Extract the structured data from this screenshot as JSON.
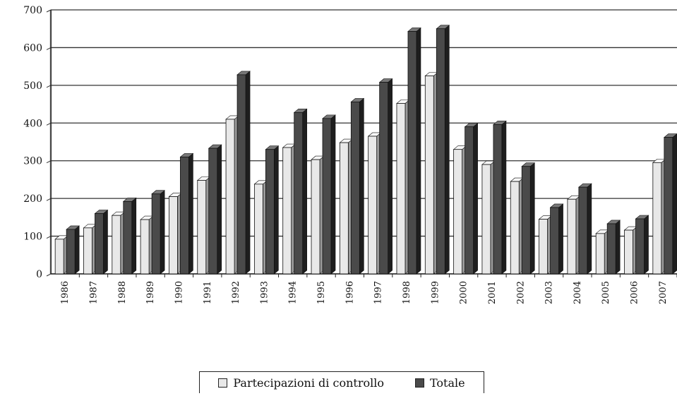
{
  "chart_data": {
    "type": "bar",
    "title": "",
    "xlabel": "",
    "ylabel": "",
    "categories": [
      "1986",
      "1987",
      "1988",
      "1989",
      "1990",
      "1991",
      "1992",
      "1993",
      "1994",
      "1995",
      "1996",
      "1997",
      "1998",
      "1999",
      "2000",
      "2001",
      "2002",
      "2003",
      "2004",
      "2005",
      "2006",
      "2007"
    ],
    "ylim": [
      0,
      700
    ],
    "yticks": [
      "0",
      "100",
      "200",
      "300",
      "400",
      "500",
      "600",
      "700"
    ],
    "grid": true,
    "legend_position": "bottom",
    "series": [
      {
        "name": "Partecipazioni di controllo",
        "color": "#e8e8e8",
        "values": [
          92,
          122,
          155,
          144,
          205,
          248,
          410,
          238,
          335,
          303,
          348,
          365,
          452,
          525,
          330,
          290,
          245,
          145,
          198,
          107,
          116,
          295
        ]
      },
      {
        "name": "Totale",
        "color": "#4a4a4a",
        "values": [
          118,
          160,
          192,
          212,
          310,
          333,
          528,
          330,
          428,
          412,
          456,
          508,
          643,
          650,
          390,
          396,
          285,
          176,
          230,
          133,
          146,
          362
        ]
      }
    ]
  }
}
